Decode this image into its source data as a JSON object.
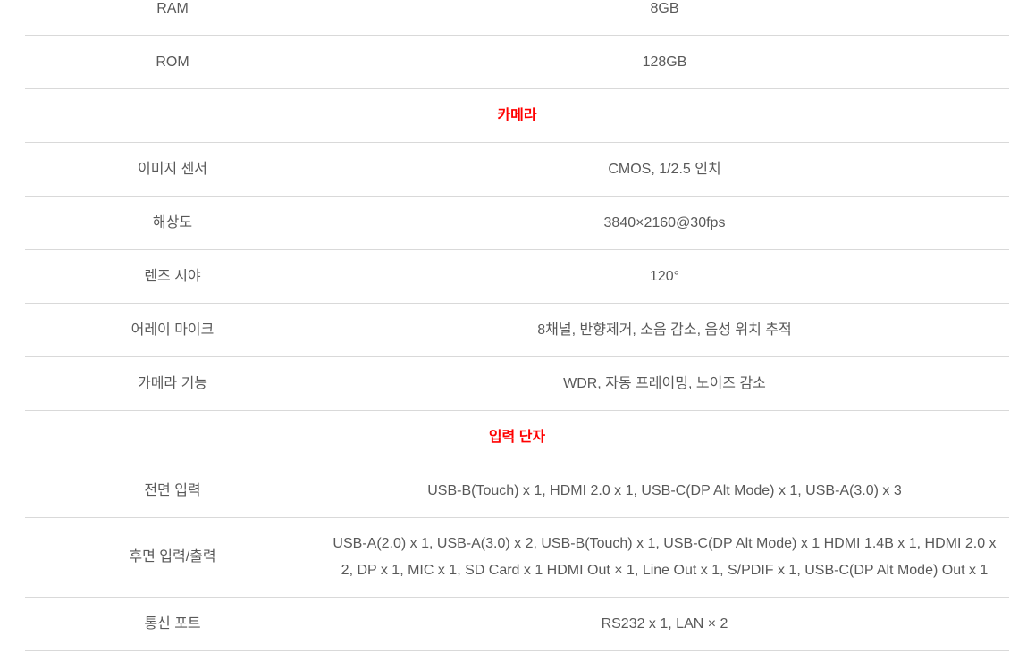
{
  "colors": {
    "section_header_red": "#ff0000",
    "text_gray": "#595959",
    "divider_gray": "#d9d9d9"
  },
  "spec_table": {
    "rows": [
      {
        "type": "spec",
        "label": "RAM",
        "value": "8GB"
      },
      {
        "type": "spec",
        "label": "ROM",
        "value": "128GB"
      },
      {
        "type": "section",
        "title": "카메라"
      },
      {
        "type": "spec",
        "label": "이미지 센서",
        "value": "CMOS, 1/2.5 인치"
      },
      {
        "type": "spec",
        "label": "해상도",
        "value": "3840×2160@30fps"
      },
      {
        "type": "spec",
        "label": "렌즈 시야",
        "value": "120°"
      },
      {
        "type": "spec",
        "label": "어레이 마이크",
        "value": "8채널, 반향제거, 소음 감소, 음성 위치 추적"
      },
      {
        "type": "spec",
        "label": "카메라 기능",
        "value": "WDR, 자동 프레이밍, 노이즈 감소"
      },
      {
        "type": "section",
        "title": "입력 단자"
      },
      {
        "type": "spec",
        "label": "전면 입력",
        "value": "USB-B(Touch) x 1, HDMI 2.0 x 1, USB-C(DP Alt Mode) x 1, USB-A(3.0) x 3"
      },
      {
        "type": "spec",
        "label": "후면 입력/출력",
        "value": "USB-A(2.0) x 1, USB-A(3.0) x 2, USB-B(Touch) x 1, USB-C(DP Alt Mode) x 1 HDMI 1.4B x 1, HDMI 2.0 x 2, DP x 1, MIC x 1, SD Card x 1 HDMI Out × 1, Line Out x 1, S/PDIF x 1, USB-C(DP Alt Mode) Out x 1"
      },
      {
        "type": "spec",
        "label": "통신 포트",
        "value": "RS232 x 1, LAN × 2"
      }
    ]
  }
}
